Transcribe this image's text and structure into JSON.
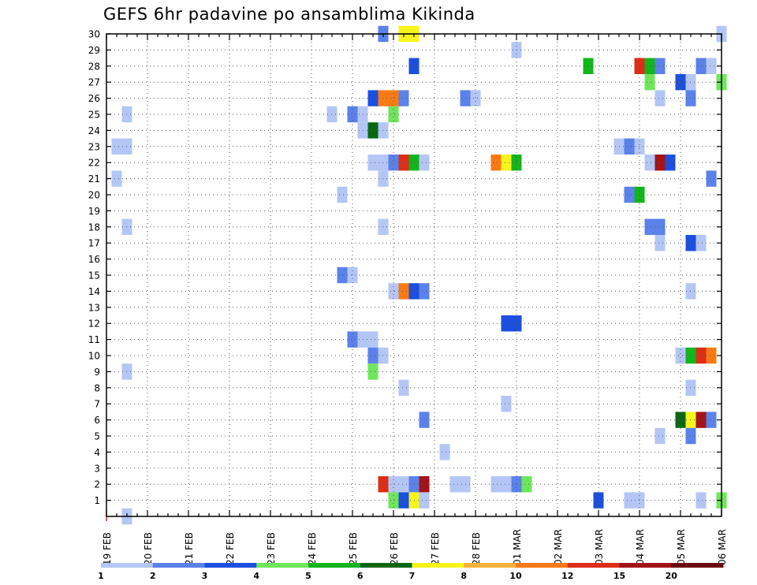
{
  "chart_data": {
    "type": "heatmap",
    "title": "GEFS 6hr padavine po ansamblima Kikinda",
    "xlabel": "",
    "ylabel": "",
    "x_tick_labels": [
      "19 FEB",
      "20 FEB",
      "21 FEB",
      "22 FEB",
      "23 FEB",
      "24 FEB",
      "25 FEB",
      "26 FEB",
      "27 FEB",
      "28 FEB",
      "01 MAR",
      "02 MAR",
      "03 MAR",
      "04 MAR",
      "05 MAR",
      "06 MAR"
    ],
    "x_range_days": [
      0,
      15
    ],
    "y_tick_labels": [
      "1",
      "2",
      "3",
      "4",
      "5",
      "6",
      "7",
      "8",
      "9",
      "10",
      "11",
      "12",
      "13",
      "14",
      "15",
      "16",
      "17",
      "18",
      "19",
      "20",
      "21",
      "22",
      "23",
      "24",
      "25",
      "26",
      "27",
      "28",
      "29",
      "30"
    ],
    "y_range": [
      0,
      30
    ],
    "grid": true,
    "colorbar": {
      "labels": [
        "1",
        "2",
        "3",
        "4",
        "5",
        "6",
        "7",
        "8",
        "10",
        "12",
        "15",
        "20"
      ],
      "colors": [
        "#b4c6f5",
        "#5b82ea",
        "#1b4fde",
        "#6ee65a",
        "#13b51c",
        "#0b6612",
        "#f5f51c",
        "#fbb23a",
        "#f97a14",
        "#dd2e16",
        "#a4131a",
        "#6a0a10"
      ]
    },
    "cells": [
      {
        "m": 30,
        "d": 6.75,
        "v": 2
      },
      {
        "m": 30,
        "d": 7.25,
        "v": 7
      },
      {
        "m": 30,
        "d": 7.5,
        "v": 7
      },
      {
        "m": 30,
        "d": 15,
        "v": 1
      },
      {
        "m": 29,
        "d": 10,
        "v": 1
      },
      {
        "m": 28,
        "d": 7.5,
        "v": 3
      },
      {
        "m": 28,
        "d": 11.75,
        "v": 5
      },
      {
        "m": 28,
        "d": 13,
        "v": 13
      },
      {
        "m": 28,
        "d": 13.25,
        "v": 5
      },
      {
        "m": 28,
        "d": 13.5,
        "v": 2
      },
      {
        "m": 28,
        "d": 14.5,
        "v": 2
      },
      {
        "m": 28,
        "d": 14.75,
        "v": 1
      },
      {
        "m": 27,
        "d": 13.25,
        "v": 4
      },
      {
        "m": 27,
        "d": 14,
        "v": 3
      },
      {
        "m": 27,
        "d": 14.25,
        "v": 1
      },
      {
        "m": 27,
        "d": 15,
        "v": 4
      },
      {
        "m": 26,
        "d": 6.5,
        "v": 3
      },
      {
        "m": 26,
        "d": 6.75,
        "v": 10
      },
      {
        "m": 26,
        "d": 7,
        "v": 10
      },
      {
        "m": 26,
        "d": 7.25,
        "v": 2
      },
      {
        "m": 26,
        "d": 8.75,
        "v": 2
      },
      {
        "m": 26,
        "d": 9,
        "v": 1
      },
      {
        "m": 26,
        "d": 13.5,
        "v": 1
      },
      {
        "m": 26,
        "d": 14.25,
        "v": 2
      },
      {
        "m": 25,
        "d": 0.5,
        "v": 1
      },
      {
        "m": 25,
        "d": 5.5,
        "v": 1
      },
      {
        "m": 25,
        "d": 6,
        "v": 2
      },
      {
        "m": 25,
        "d": 6.25,
        "v": 1
      },
      {
        "m": 25,
        "d": 7,
        "v": 4
      },
      {
        "m": 24,
        "d": 6.25,
        "v": 1
      },
      {
        "m": 24,
        "d": 6.5,
        "v": 6
      },
      {
        "m": 24,
        "d": 6.75,
        "v": 1
      },
      {
        "m": 23,
        "d": 0.25,
        "v": 1
      },
      {
        "m": 23,
        "d": 0.5,
        "v": 1
      },
      {
        "m": 23,
        "d": 12.5,
        "v": 1
      },
      {
        "m": 23,
        "d": 12.75,
        "v": 2
      },
      {
        "m": 23,
        "d": 13,
        "v": 1
      },
      {
        "m": 22,
        "d": 6.5,
        "v": 1
      },
      {
        "m": 22,
        "d": 6.75,
        "v": 1
      },
      {
        "m": 22,
        "d": 7,
        "v": 2
      },
      {
        "m": 22,
        "d": 7.25,
        "v": 12
      },
      {
        "m": 22,
        "d": 7.5,
        "v": 5
      },
      {
        "m": 22,
        "d": 7.75,
        "v": 1
      },
      {
        "m": 22,
        "d": 9.5,
        "v": 10
      },
      {
        "m": 22,
        "d": 9.75,
        "v": 7
      },
      {
        "m": 22,
        "d": 10,
        "v": 5
      },
      {
        "m": 22,
        "d": 13.25,
        "v": 1
      },
      {
        "m": 22,
        "d": 13.5,
        "v": 15
      },
      {
        "m": 22,
        "d": 13.75,
        "v": 3
      },
      {
        "m": 21,
        "d": 0.25,
        "v": 1
      },
      {
        "m": 21,
        "d": 6.75,
        "v": 1
      },
      {
        "m": 21,
        "d": 14.75,
        "v": 2
      },
      {
        "m": 20,
        "d": 5.75,
        "v": 1
      },
      {
        "m": 20,
        "d": 12.75,
        "v": 2
      },
      {
        "m": 20,
        "d": 13,
        "v": 5
      },
      {
        "m": 18,
        "d": 0.5,
        "v": 1
      },
      {
        "m": 18,
        "d": 6.75,
        "v": 1
      },
      {
        "m": 18,
        "d": 13.25,
        "v": 2
      },
      {
        "m": 18,
        "d": 13.5,
        "v": 2
      },
      {
        "m": 17,
        "d": 13.5,
        "v": 1
      },
      {
        "m": 17,
        "d": 14.25,
        "v": 3
      },
      {
        "m": 17,
        "d": 14.5,
        "v": 1
      },
      {
        "m": 15,
        "d": 5.75,
        "v": 2
      },
      {
        "m": 15,
        "d": 6,
        "v": 1
      },
      {
        "m": 14,
        "d": 7,
        "v": 1
      },
      {
        "m": 14,
        "d": 7.25,
        "v": 10
      },
      {
        "m": 14,
        "d": 7.5,
        "v": 3
      },
      {
        "m": 14,
        "d": 7.75,
        "v": 2
      },
      {
        "m": 14,
        "d": 14.25,
        "v": 1
      },
      {
        "m": 12,
        "d": 9.75,
        "v": 3
      },
      {
        "m": 12,
        "d": 10,
        "v": 3
      },
      {
        "m": 11,
        "d": 6,
        "v": 2
      },
      {
        "m": 11,
        "d": 6.25,
        "v": 1
      },
      {
        "m": 11,
        "d": 6.5,
        "v": 1
      },
      {
        "m": 10,
        "d": 6.5,
        "v": 2
      },
      {
        "m": 10,
        "d": 6.75,
        "v": 1
      },
      {
        "m": 10,
        "d": 14,
        "v": 1
      },
      {
        "m": 10,
        "d": 14.25,
        "v": 5
      },
      {
        "m": 10,
        "d": 14.5,
        "v": 12
      },
      {
        "m": 10,
        "d": 14.75,
        "v": 10
      },
      {
        "m": 9,
        "d": 0.5,
        "v": 1
      },
      {
        "m": 9,
        "d": 6.5,
        "v": 4
      },
      {
        "m": 8,
        "d": 7.25,
        "v": 1
      },
      {
        "m": 8,
        "d": 14.25,
        "v": 1
      },
      {
        "m": 7,
        "d": 9.75,
        "v": 1
      },
      {
        "m": 6,
        "d": 7.75,
        "v": 2
      },
      {
        "m": 6,
        "d": 14,
        "v": 6
      },
      {
        "m": 6,
        "d": 14.25,
        "v": 7
      },
      {
        "m": 6,
        "d": 14.5,
        "v": 15
      },
      {
        "m": 6,
        "d": 14.75,
        "v": 2
      },
      {
        "m": 5,
        "d": 13.5,
        "v": 1
      },
      {
        "m": 5,
        "d": 14.25,
        "v": 2
      },
      {
        "m": 4,
        "d": 8.25,
        "v": 1
      },
      {
        "m": 2,
        "d": 6.75,
        "v": 12
      },
      {
        "m": 2,
        "d": 7,
        "v": 1
      },
      {
        "m": 2,
        "d": 7.25,
        "v": 1
      },
      {
        "m": 2,
        "d": 7.5,
        "v": 2
      },
      {
        "m": 2,
        "d": 7.75,
        "v": 15
      },
      {
        "m": 2,
        "d": 8.5,
        "v": 1
      },
      {
        "m": 2,
        "d": 8.75,
        "v": 1
      },
      {
        "m": 2,
        "d": 9.5,
        "v": 1
      },
      {
        "m": 2,
        "d": 9.75,
        "v": 1
      },
      {
        "m": 2,
        "d": 10,
        "v": 2
      },
      {
        "m": 2,
        "d": 10.25,
        "v": 4
      },
      {
        "m": 1,
        "d": 7,
        "v": 4
      },
      {
        "m": 1,
        "d": 7.25,
        "v": 3
      },
      {
        "m": 1,
        "d": 7.5,
        "v": 7
      },
      {
        "m": 1,
        "d": 7.75,
        "v": 1
      },
      {
        "m": 1,
        "d": 12,
        "v": 3
      },
      {
        "m": 1,
        "d": 12.75,
        "v": 1
      },
      {
        "m": 1,
        "d": 13,
        "v": 1
      },
      {
        "m": 1,
        "d": 14.5,
        "v": 1
      },
      {
        "m": 1,
        "d": 15,
        "v": 4
      },
      {
        "m": 0,
        "d": 0.5,
        "v": 1
      }
    ]
  }
}
